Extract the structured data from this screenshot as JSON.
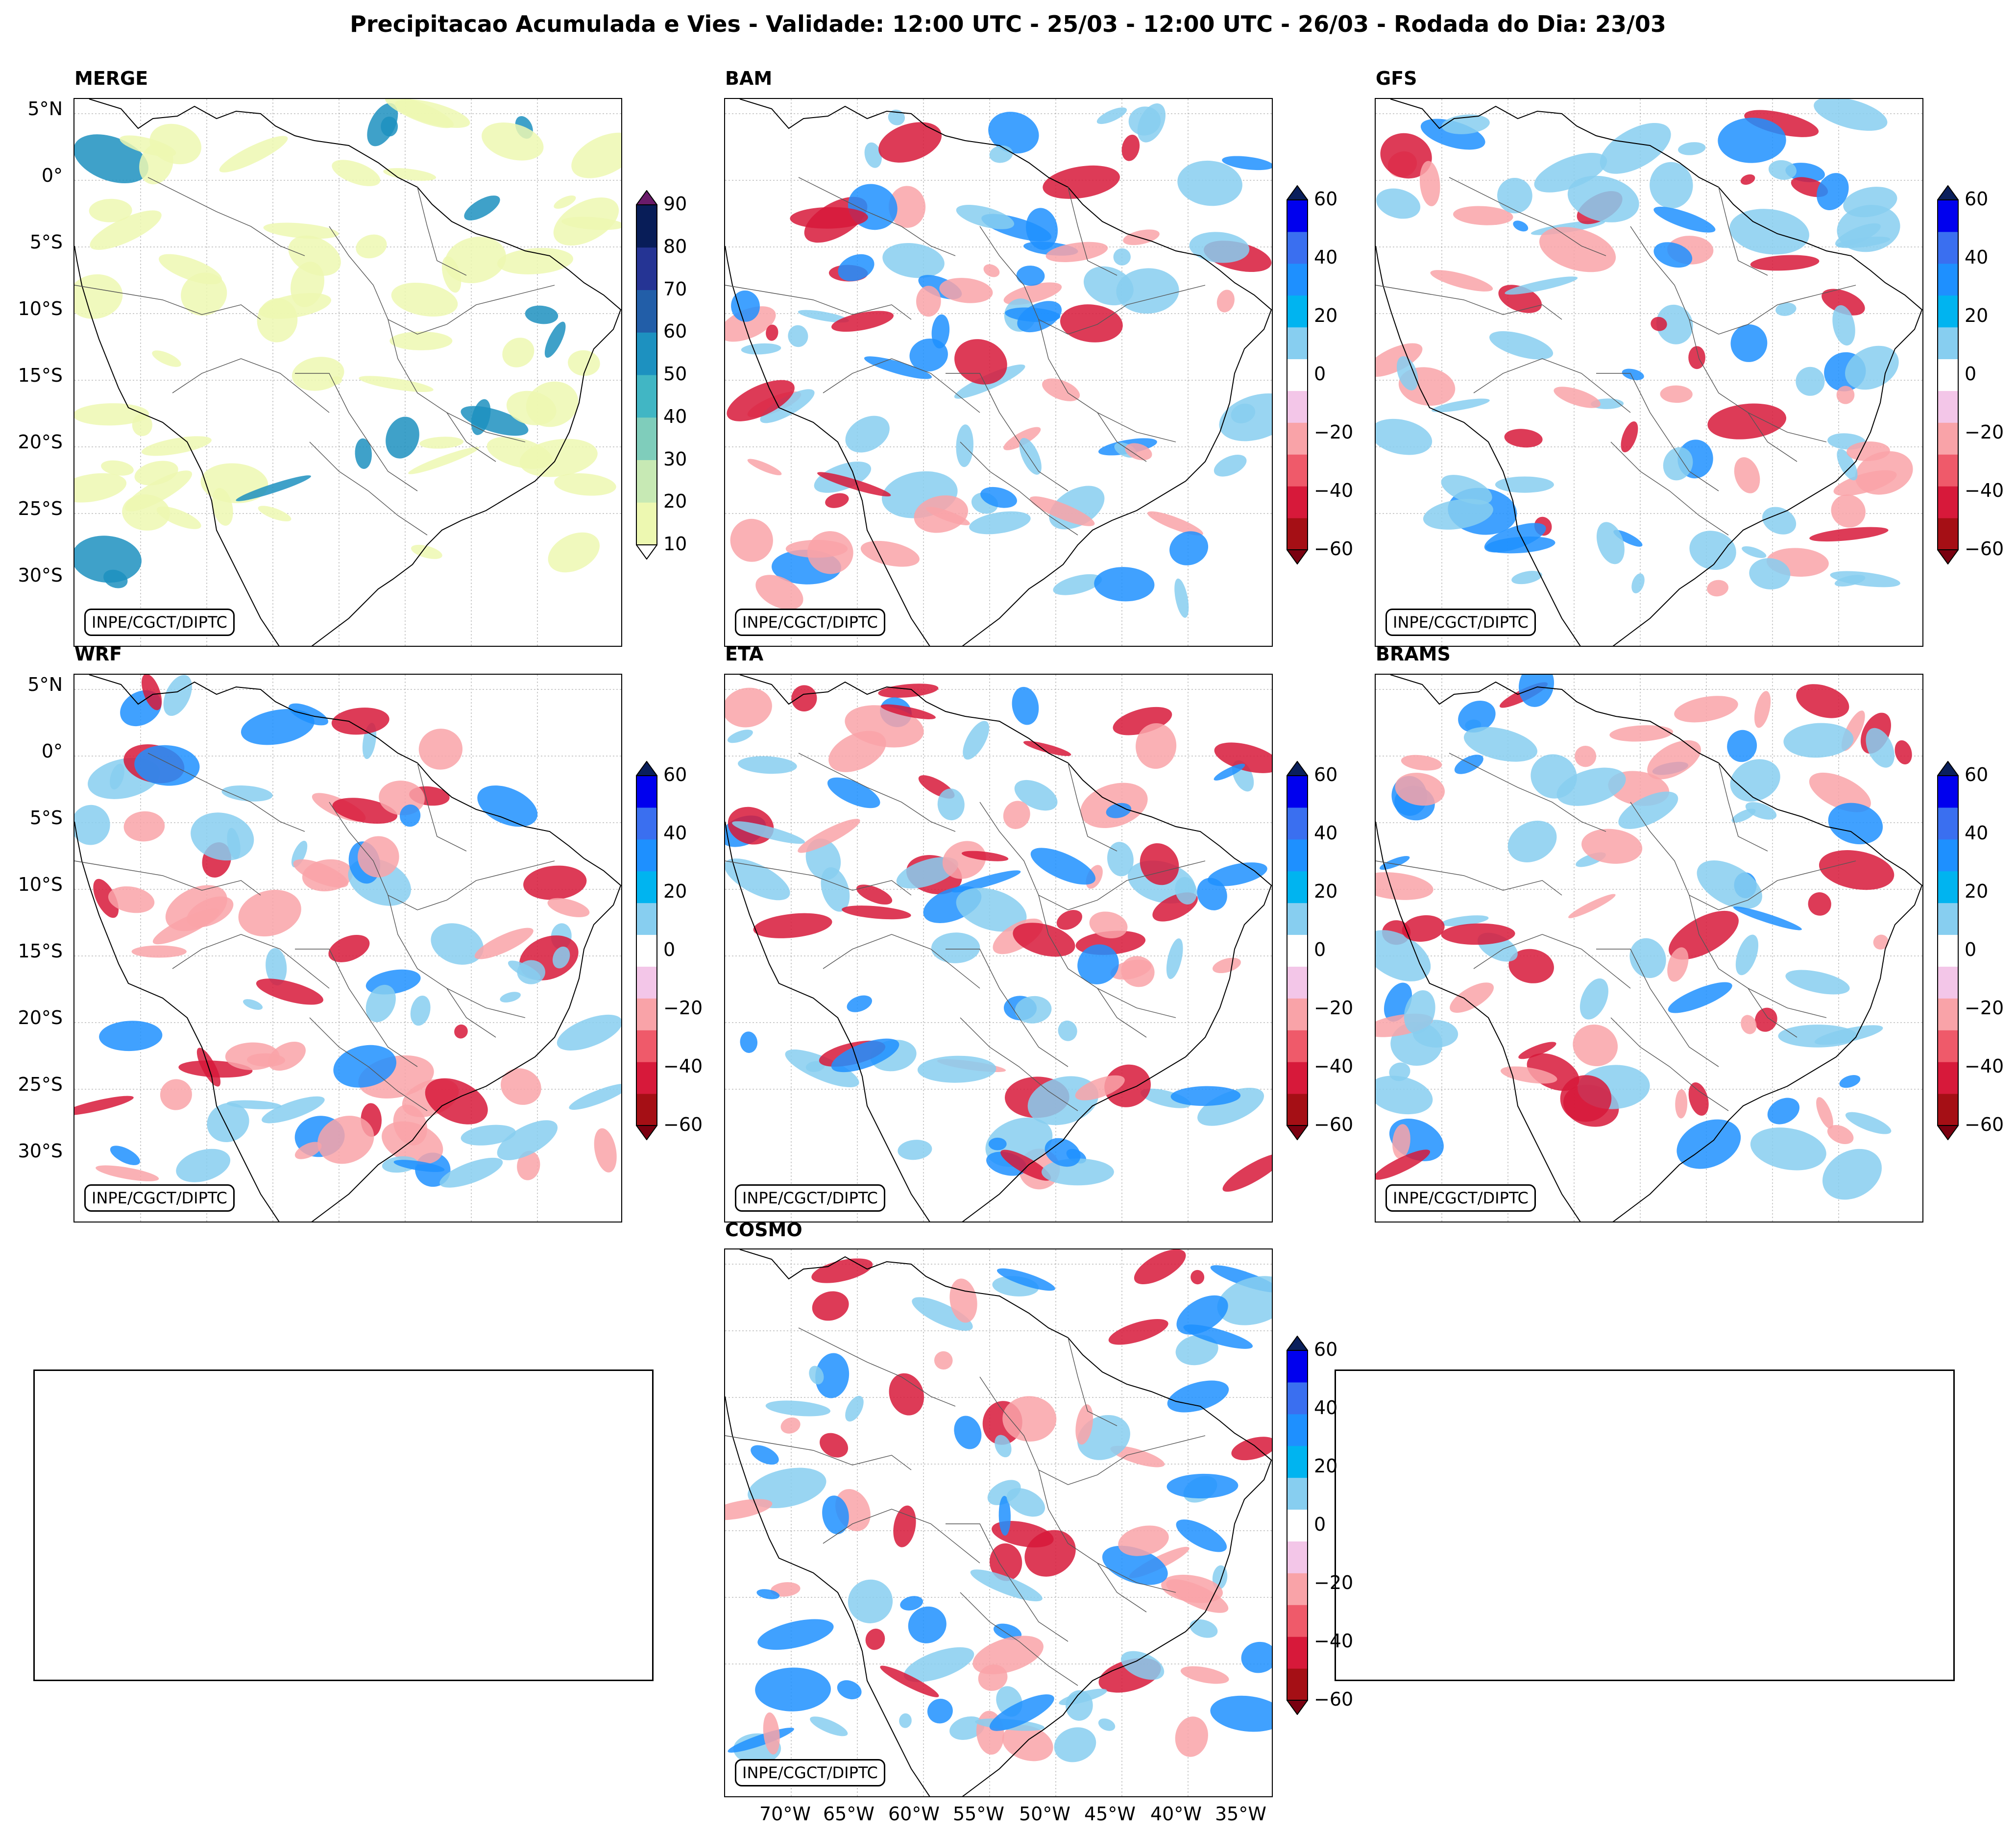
{
  "title": "Precipitacao Acumulada e Vies - Validade: 12:00 UTC - 25/03 - 12:00 UTC - 26/03 - Rodada do Dia: 23/03",
  "credit": "INPE/CGCT/DIPTC",
  "lat_labels": [
    "5°N",
    "0°",
    "5°S",
    "10°S",
    "15°S",
    "20°S",
    "25°S",
    "30°S"
  ],
  "lon_labels": [
    "70°W",
    "65°W",
    "60°W",
    "55°W",
    "50°W",
    "45°W",
    "40°W",
    "35°W"
  ],
  "panels": [
    {
      "id": "merge",
      "title": "MERGE",
      "kind": "precip"
    },
    {
      "id": "bam",
      "title": "BAM",
      "kind": "bias"
    },
    {
      "id": "gfs",
      "title": "GFS",
      "kind": "bias"
    },
    {
      "id": "wrf",
      "title": "WRF",
      "kind": "bias"
    },
    {
      "id": "eta",
      "title": "ETA",
      "kind": "bias"
    },
    {
      "id": "brams",
      "title": "BRAMS",
      "kind": "bias"
    },
    {
      "id": "cosmo",
      "title": "COSMO",
      "kind": "bias"
    }
  ],
  "colorbars": {
    "precip": {
      "ticks": [
        "90",
        "80",
        "70",
        "60",
        "50",
        "40",
        "30",
        "20",
        "10"
      ],
      "levels": [
        10,
        20,
        30,
        40,
        50,
        60,
        70,
        80,
        90
      ],
      "colors": [
        "#edf8b1",
        "#c7e9b4",
        "#7fcdbb",
        "#41b6c4",
        "#1d91c0",
        "#225ea8",
        "#253494",
        "#081d58"
      ],
      "over_color": "#6a1b6a",
      "under_color": "#ffffff"
    },
    "bias": {
      "ticks": [
        "60",
        "40",
        "20",
        "0",
        "−20",
        "−40",
        "−60"
      ],
      "levels": [
        -60,
        -50,
        -40,
        -30,
        -20,
        -10,
        10,
        20,
        30,
        40,
        50,
        60
      ],
      "colors": [
        "#a50f15",
        "#d7193a",
        "#ef5a6a",
        "#f9a3a8",
        "#f3c6e8",
        "#ffffff",
        "#87cef0",
        "#00b4f0",
        "#1e90ff",
        "#3a6ff0",
        "#0000ee"
      ],
      "over_color": "#0a1f5c",
      "under_color": "#7a0010"
    }
  },
  "legend_colors": {
    "precip_low": "#edf8b1",
    "precip_high": "#1d91c0",
    "bias_positive": "#87cef0",
    "bias_positive_strong": "#1e90ff",
    "bias_negative": "#f9a3a8",
    "bias_negative_strong": "#d7193a"
  }
}
